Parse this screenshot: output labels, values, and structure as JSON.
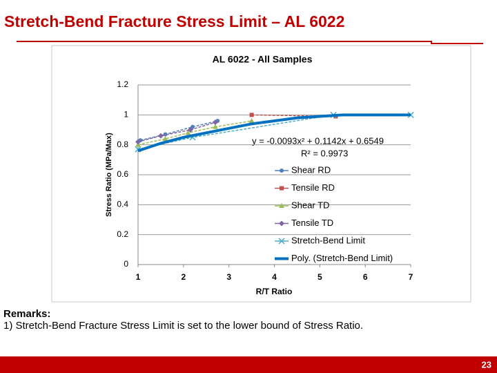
{
  "header": {
    "title": "Stretch-Bend Fracture Stress Limit – AL 6022"
  },
  "chart_data": {
    "type": "line",
    "title": "AL 6022 - All Samples",
    "xlabel": "R/T Ratio",
    "ylabel": "Stress Ratio (MPa/Max)",
    "xlim": [
      1,
      7
    ],
    "xticks": [
      1,
      2,
      3,
      4,
      5,
      6,
      7
    ],
    "ylim": [
      0,
      1.2
    ],
    "yticks": [
      0,
      0.2,
      0.4,
      0.6,
      0.8,
      1,
      1.2
    ],
    "grid": true,
    "legend": "right",
    "annotations": [
      "y = -0.0093x² + 0.1142x + 0.6549",
      "R² = 0.9973"
    ],
    "series": [
      {
        "name": "Shear RD",
        "color": "#4f81bd",
        "marker": "circle",
        "x": [
          1.05,
          1.6,
          2.2,
          2.75
        ],
        "values": [
          0.83,
          0.87,
          0.92,
          0.96
        ]
      },
      {
        "name": "Tensile RD",
        "color": "#c0504d",
        "marker": "square",
        "x": [
          3.5,
          5.35
        ],
        "values": [
          1.0,
          0.99
        ]
      },
      {
        "name": "Shear TD",
        "color": "#9bbb59",
        "marker": "triangle",
        "x": [
          1,
          1.6,
          2.1,
          2.7,
          3.5
        ],
        "values": [
          0.8,
          0.84,
          0.88,
          0.92,
          0.96
        ]
      },
      {
        "name": "Tensile TD",
        "color": "#8064a2",
        "marker": "diamond",
        "x": [
          1,
          1.5,
          2.15,
          2.7
        ],
        "values": [
          0.82,
          0.86,
          0.9,
          0.95
        ]
      },
      {
        "name": "Stretch-Bend Limit",
        "color": "#4bacc6",
        "marker": "x",
        "x": [
          1,
          2.2,
          5.3,
          7
        ],
        "values": [
          0.77,
          0.85,
          1.0,
          1.0
        ]
      },
      {
        "name": "Poly. (Stretch-Bend Limit)",
        "color": "#0070c0",
        "marker": "none",
        "width": 4,
        "x": [
          1,
          1.5,
          2,
          2.5,
          3,
          3.5,
          4,
          4.5,
          5,
          5.5,
          6,
          6.5,
          7
        ],
        "values": [
          0.76,
          0.81,
          0.85,
          0.88,
          0.91,
          0.94,
          0.96,
          0.98,
          0.99,
          1.0,
          1.0,
          1.0,
          1.0
        ]
      }
    ]
  },
  "remarks": {
    "heading": "Remarks:",
    "items": [
      "1)  Stretch-Bend Fracture Stress Limit is set to the lower bound of Stress Ratio."
    ]
  },
  "footer": {
    "page_number": "23"
  }
}
